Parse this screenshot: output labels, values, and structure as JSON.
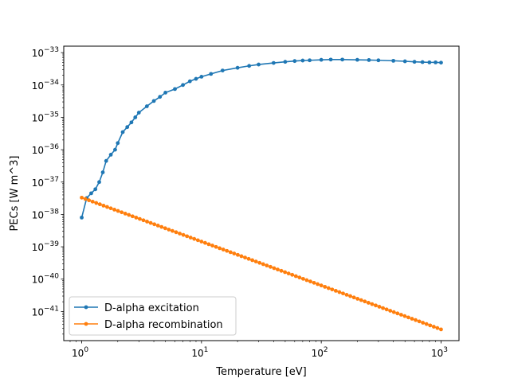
{
  "chart_data": {
    "type": "line",
    "xlabel": "Temperature [eV]",
    "ylabel": "PECs [W m^3]",
    "xscale": "log",
    "yscale": "log",
    "xlim": [
      0.7079,
      1412.5
    ],
    "ylim": [
      1.259e-42,
      1.585e-33
    ],
    "grid": false,
    "legend_position": "lower-left",
    "x_ticks": [
      {
        "value": 1,
        "base": "10",
        "exp": "0"
      },
      {
        "value": 10,
        "base": "10",
        "exp": "1"
      },
      {
        "value": 100,
        "base": "10",
        "exp": "2"
      },
      {
        "value": 1000,
        "base": "10",
        "exp": "3"
      }
    ],
    "y_ticks": [
      {
        "value": 1e-41,
        "base": "10",
        "exp": "−41"
      },
      {
        "value": 1e-40,
        "base": "10",
        "exp": "−40"
      },
      {
        "value": 1e-39,
        "base": "10",
        "exp": "−39"
      },
      {
        "value": 1e-38,
        "base": "10",
        "exp": "−38"
      },
      {
        "value": 1e-37,
        "base": "10",
        "exp": "−37"
      },
      {
        "value": 1e-36,
        "base": "10",
        "exp": "−36"
      },
      {
        "value": 1e-35,
        "base": "10",
        "exp": "−35"
      },
      {
        "value": 1e-34,
        "base": "10",
        "exp": "−34"
      },
      {
        "value": 1e-33,
        "base": "10",
        "exp": "−33"
      }
    ],
    "series": [
      {
        "name": "D-alpha excitation",
        "color": "#1f77b4",
        "points": [
          [
            1.0,
            8e-39
          ],
          [
            1.1,
            3.2e-38
          ],
          [
            1.2,
            4.5e-38
          ],
          [
            1.3,
            6e-38
          ],
          [
            1.4,
            1e-37
          ],
          [
            1.5,
            2e-37
          ],
          [
            1.6,
            4.5e-37
          ],
          [
            1.75,
            7e-37
          ],
          [
            1.9,
            1e-36
          ],
          [
            2.0,
            1.6e-36
          ],
          [
            2.2,
            3.5e-36
          ],
          [
            2.4,
            5e-36
          ],
          [
            2.6,
            7e-36
          ],
          [
            2.8,
            1e-35
          ],
          [
            3.0,
            1.4e-35
          ],
          [
            3.5,
            2.2e-35
          ],
          [
            4.0,
            3.2e-35
          ],
          [
            4.5,
            4.3e-35
          ],
          [
            5.0,
            5.8e-35
          ],
          [
            6.0,
            7.5e-35
          ],
          [
            7.0,
            1e-34
          ],
          [
            8.0,
            1.3e-34
          ],
          [
            9.0,
            1.55e-34
          ],
          [
            10.0,
            1.8e-34
          ],
          [
            12.0,
            2.2e-34
          ],
          [
            15.0,
            2.8e-34
          ],
          [
            20.0,
            3.4e-34
          ],
          [
            25.0,
            3.9e-34
          ],
          [
            30.0,
            4.3e-34
          ],
          [
            40.0,
            4.8e-34
          ],
          [
            50.0,
            5.2e-34
          ],
          [
            60.0,
            5.5e-34
          ],
          [
            70.0,
            5.7e-34
          ],
          [
            80.0,
            5.8e-34
          ],
          [
            100.0,
            6e-34
          ],
          [
            120.0,
            6.1e-34
          ],
          [
            150.0,
            6.1e-34
          ],
          [
            200.0,
            6e-34
          ],
          [
            250.0,
            5.9e-34
          ],
          [
            300.0,
            5.8e-34
          ],
          [
            400.0,
            5.6e-34
          ],
          [
            500.0,
            5.4e-34
          ],
          [
            600.0,
            5.2e-34
          ],
          [
            700.0,
            5.1e-34
          ],
          [
            800.0,
            5e-34
          ],
          [
            900.0,
            5e-34
          ],
          [
            1000.0,
            4.9e-34
          ]
        ]
      },
      {
        "name": "D-alpha recombination",
        "color": "#ff7f0e",
        "points": [
          [
            1.0,
            3.3e-38
          ],
          [
            1000.0,
            2.8e-42
          ]
        ]
      }
    ]
  }
}
